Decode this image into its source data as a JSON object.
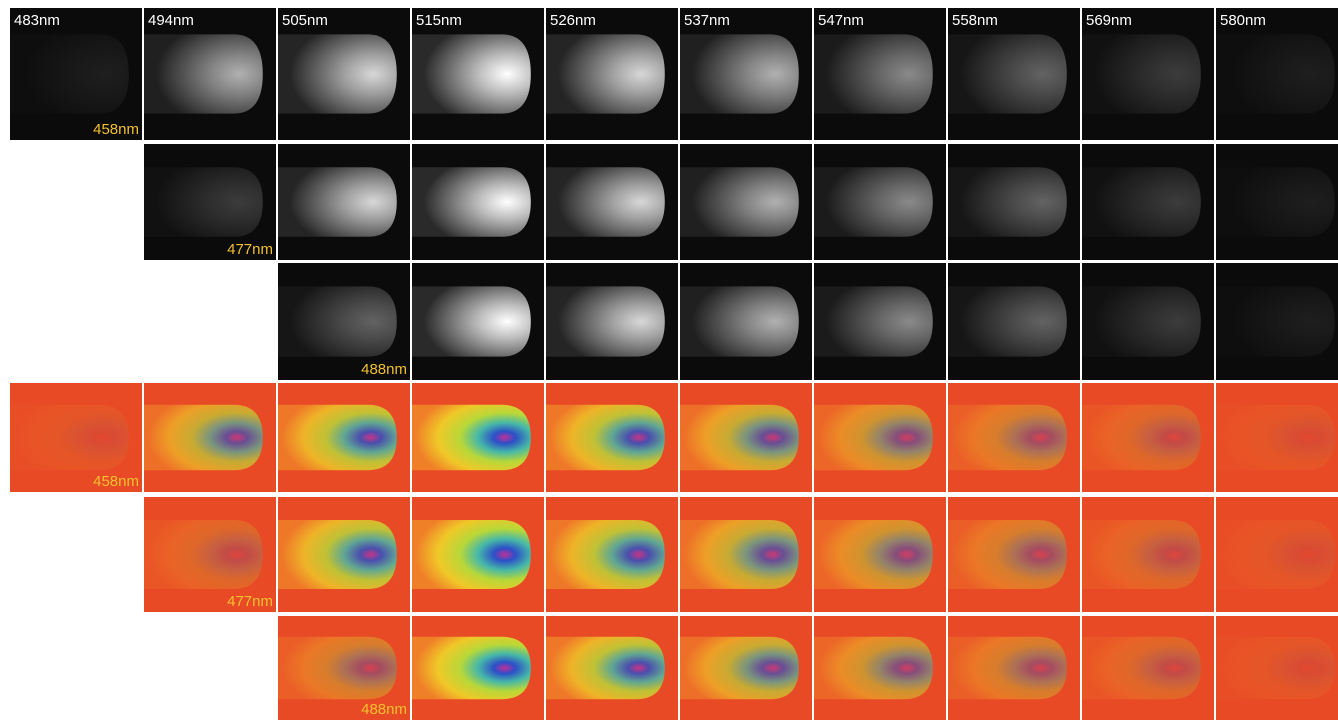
{
  "emission_labels": [
    "483nm",
    "494nm",
    "505nm",
    "515nm",
    "526nm",
    "537nm",
    "547nm",
    "558nm",
    "569nm",
    "580nm"
  ],
  "grayscale": {
    "excitation_labels": [
      "458nm",
      "477nm",
      "488nm"
    ]
  },
  "false_color": {
    "excitation_labels": [
      "458nm",
      "477nm",
      "488nm"
    ]
  }
}
